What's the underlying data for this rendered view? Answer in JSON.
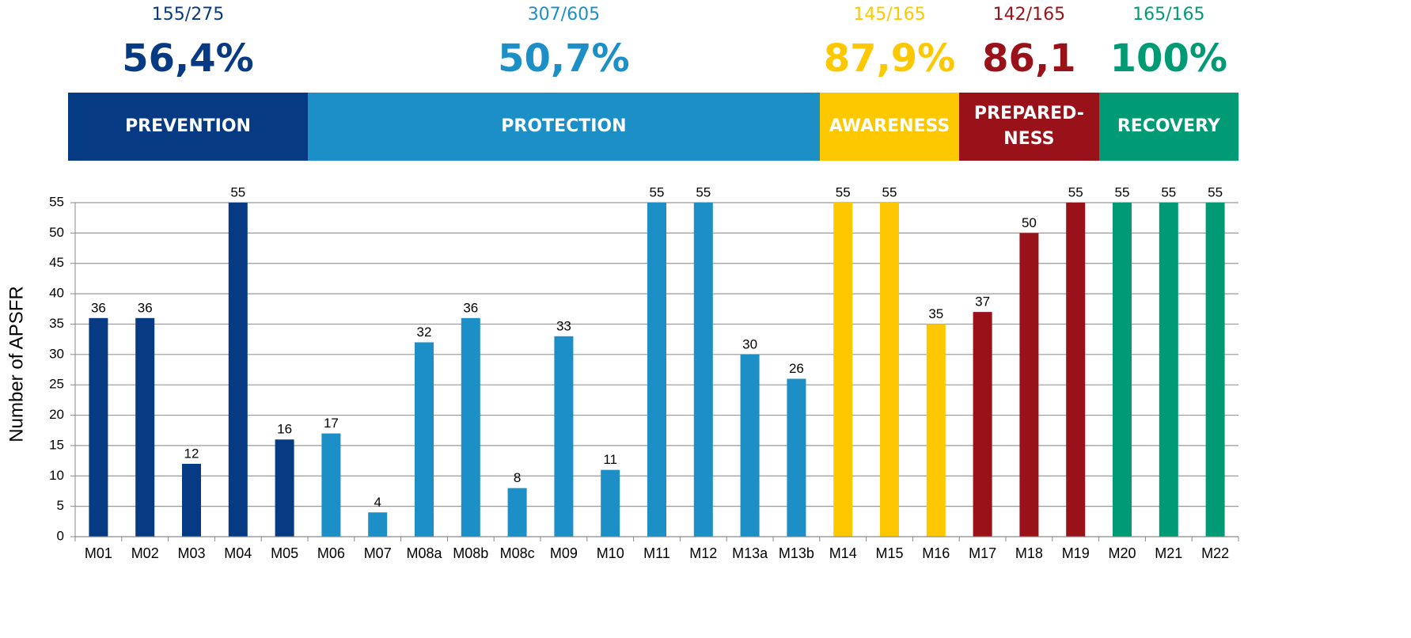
{
  "chart_data": {
    "type": "bar",
    "y_label": "Number of APSFR",
    "ylim": [
      0,
      55
    ],
    "yticks": [
      0,
      5,
      10,
      15,
      20,
      25,
      30,
      35,
      40,
      45,
      50,
      55
    ],
    "grid": true,
    "groups": [
      {
        "name": "PREVENTION",
        "ratio": "155/275",
        "share": "56,4%",
        "color": "#063a82",
        "categories": [
          "M01",
          "M02",
          "M03",
          "M04",
          "M05"
        ],
        "values": [
          36,
          36,
          12,
          55,
          16
        ]
      },
      {
        "name": "PROTECTION",
        "ratio": "307/605",
        "share": "50,7%",
        "color": "#1b8fc6",
        "categories": [
          "M06",
          "M07",
          "M08a",
          "M08b",
          "M08c",
          "M09",
          "M10",
          "M11",
          "M12",
          "M13a",
          "M13b"
        ],
        "values": [
          17,
          4,
          32,
          36,
          8,
          33,
          11,
          55,
          55,
          30,
          26
        ]
      },
      {
        "name": "AWARENESS",
        "ratio": "145/165",
        "share": "87,9%",
        "color": "#fdc800",
        "categories": [
          "M14",
          "M15",
          "M16"
        ],
        "values": [
          55,
          55,
          35
        ]
      },
      {
        "name": "PREPARED-\nNESS",
        "ratio": "142/165",
        "share": "86,1",
        "color": "#9a1219",
        "categories": [
          "M17",
          "M18",
          "M19"
        ],
        "values": [
          37,
          50,
          55
        ]
      },
      {
        "name": "RECOVERY",
        "ratio": "165/165",
        "share": "100%",
        "color": "#009a75",
        "categories": [
          "M20",
          "M21",
          "M22"
        ],
        "values": [
          55,
          55,
          55
        ]
      }
    ]
  }
}
